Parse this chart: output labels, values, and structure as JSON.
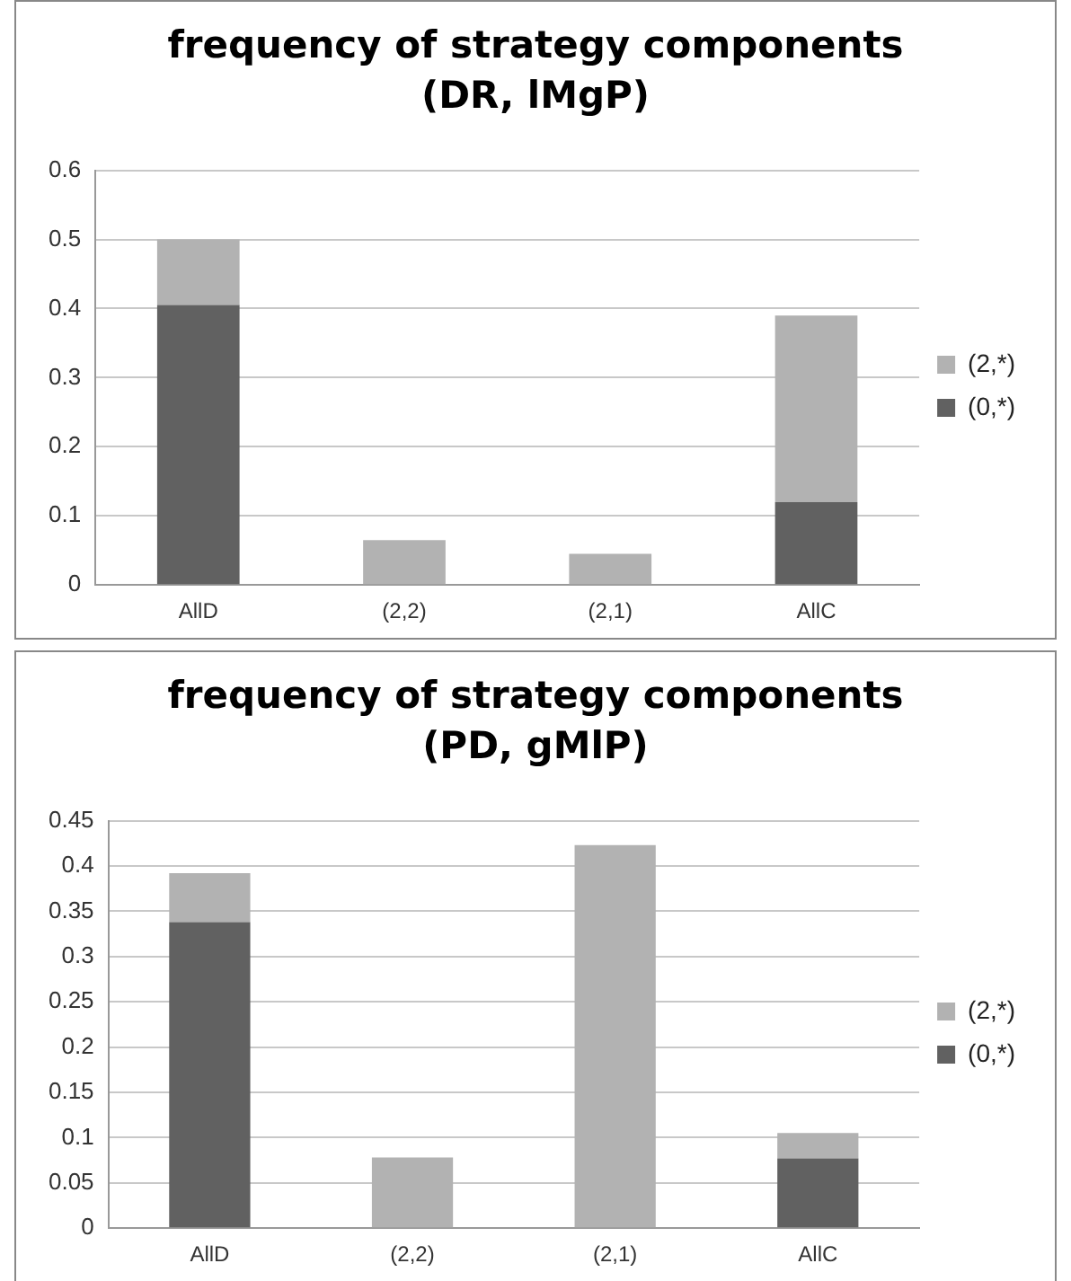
{
  "chart_data": [
    {
      "type": "bar",
      "title": "frequency of strategy components (DR, lMgP)",
      "stacked": true,
      "categories": [
        "AllD",
        "(2,2)",
        "(2,1)",
        "AllC"
      ],
      "series": [
        {
          "name": "(0,*)",
          "color": "#616161",
          "values": [
            0.405,
            0,
            0,
            0.12
          ]
        },
        {
          "name": "(2,*)",
          "color": "#b2b2b2",
          "values": [
            0.095,
            0.065,
            0.045,
            0.27
          ]
        }
      ],
      "ylim": [
        0,
        0.6
      ],
      "yticks": [
        0,
        0.1,
        0.2,
        0.3,
        0.4,
        0.5,
        0.6
      ],
      "grid": "y",
      "legend": "right"
    },
    {
      "type": "bar",
      "title": "frequency of strategy components (PD, gMlP)",
      "stacked": true,
      "categories": [
        "AllD",
        "(2,2)",
        "(2,1)",
        "AllC"
      ],
      "series": [
        {
          "name": "(0,*)",
          "color": "#616161",
          "values": [
            0.338,
            0,
            0,
            0.077
          ]
        },
        {
          "name": "(2,*)",
          "color": "#b2b2b2",
          "values": [
            0.054,
            0.078,
            0.423,
            0.028
          ]
        }
      ],
      "ylim": [
        0,
        0.45
      ],
      "yticks": [
        0,
        0.05,
        0.1,
        0.15,
        0.2,
        0.25,
        0.3,
        0.35,
        0.4,
        0.45
      ],
      "grid": "y",
      "legend": "right"
    }
  ]
}
